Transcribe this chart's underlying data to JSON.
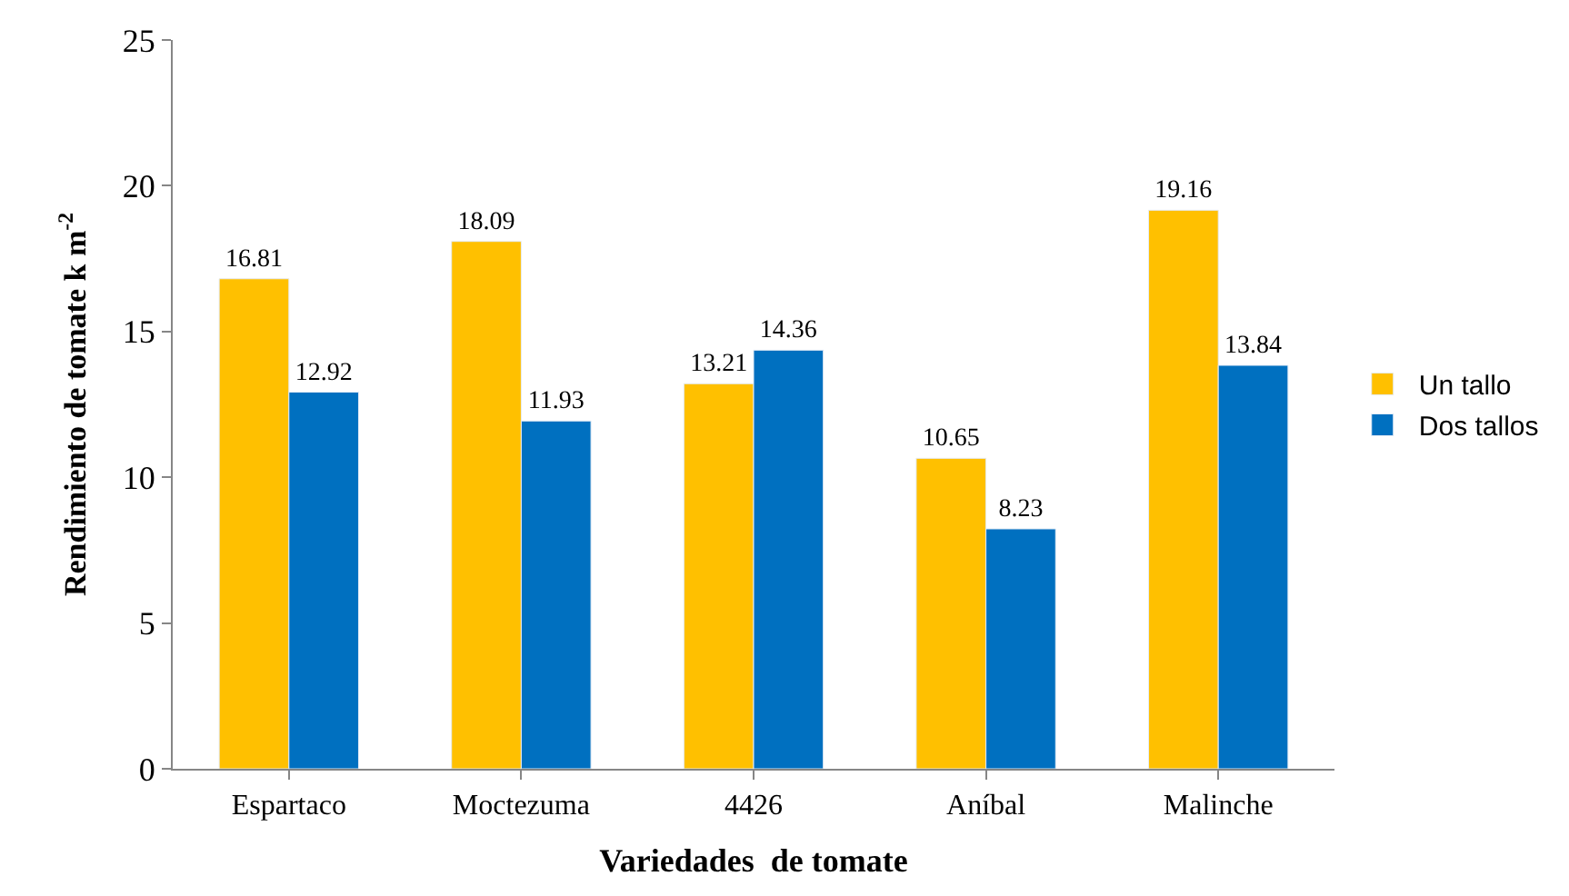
{
  "chart_data": {
    "type": "bar",
    "xlabel": "Variedades  de tomate",
    "ylabel": "Rendimiento de tomate k m$^{-2}$",
    "categories": [
      "Espartaco",
      "Moctezuma",
      "4426",
      "Aníbal",
      "Malinche"
    ],
    "series": [
      {
        "name": "Un tallo",
        "color": "#ffc000",
        "values": [
          16.81,
          18.09,
          13.21,
          10.65,
          19.16
        ]
      },
      {
        "name": "Dos tallos",
        "color": "#0070c0",
        "values": [
          12.92,
          11.93,
          14.36,
          8.23,
          13.84
        ]
      }
    ],
    "ylim": [
      0,
      25
    ],
    "yticks": [
      0,
      5,
      10,
      15,
      20,
      25
    ],
    "legend": "right",
    "data_labels": true
  }
}
